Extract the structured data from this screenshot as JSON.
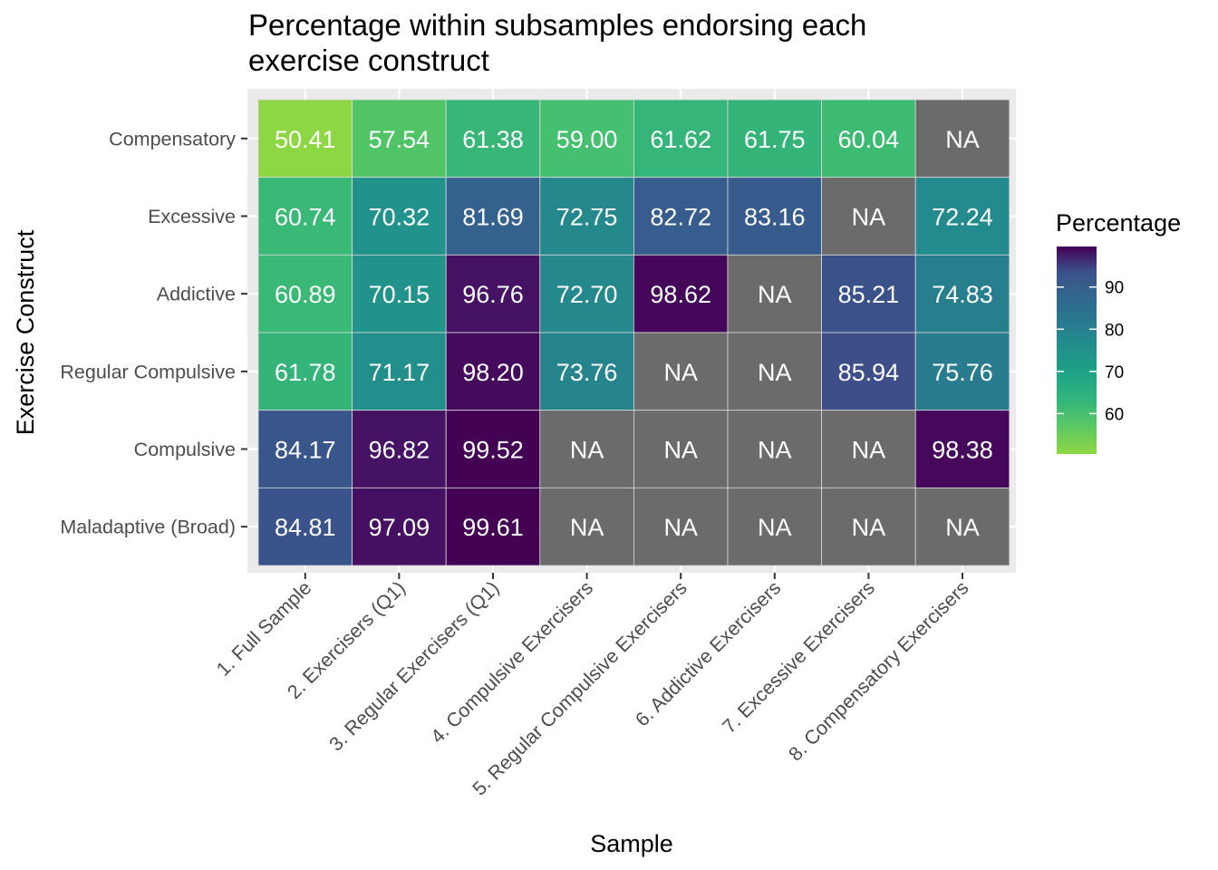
{
  "chart_data": {
    "type": "heatmap",
    "title": "Percentage within subsamples endorsing each exercise construct",
    "title_lines": [
      "Percentage within subsamples endorsing each",
      "exercise construct"
    ],
    "xlabel": "Sample",
    "ylabel": "Exercise Construct",
    "x_categories": [
      "1. Full Sample",
      "2. Exercisers (Q1)",
      "3. Regular Exercisers (Q1)",
      "4. Compulsive Exercisers",
      "5. Regular Compulsive Exercisers",
      "6. Addictive Exercisers",
      "7. Excessive Exercisers",
      "8. Compensatory Exercisers"
    ],
    "y_categories": [
      "Compensatory",
      "Excessive",
      "Addictive",
      "Regular Compulsive",
      "Compulsive",
      "Maladaptive (Broad)"
    ],
    "values": [
      [
        50.41,
        57.54,
        61.38,
        59.0,
        61.62,
        61.75,
        60.04,
        null
      ],
      [
        60.74,
        70.32,
        81.69,
        72.75,
        82.72,
        83.16,
        null,
        72.24
      ],
      [
        60.89,
        70.15,
        96.76,
        72.7,
        98.62,
        null,
        85.21,
        74.83
      ],
      [
        61.78,
        71.17,
        98.2,
        73.76,
        null,
        null,
        85.94,
        75.76
      ],
      [
        84.17,
        96.82,
        99.52,
        null,
        null,
        null,
        null,
        98.38
      ],
      [
        84.81,
        97.09,
        99.61,
        null,
        null,
        null,
        null,
        null
      ]
    ],
    "cell_labels": [
      [
        "50.41",
        "57.54",
        "61.38",
        "59.00",
        "61.62",
        "61.75",
        "60.04",
        "NA"
      ],
      [
        "60.74",
        "70.32",
        "81.69",
        "72.75",
        "82.72",
        "83.16",
        "NA",
        "72.24"
      ],
      [
        "60.89",
        "70.15",
        "96.76",
        "72.70",
        "98.62",
        "NA",
        "85.21",
        "74.83"
      ],
      [
        "61.78",
        "71.17",
        "98.20",
        "73.76",
        "NA",
        "NA",
        "85.94",
        "75.76"
      ],
      [
        "84.17",
        "96.82",
        "99.52",
        "NA",
        "NA",
        "NA",
        "NA",
        "98.38"
      ],
      [
        "84.81",
        "97.09",
        "99.61",
        "NA",
        "NA",
        "NA",
        "NA",
        "NA"
      ]
    ],
    "na_color": "#6b6b6b",
    "colorscale": "viridis (reversed)",
    "color_range": [
      50.41,
      99.61
    ],
    "legend": {
      "title": "Percentage",
      "ticks": [
        60,
        70,
        80,
        90
      ],
      "tick_labels": [
        "60",
        "70",
        "80",
        "90"
      ],
      "placement": "right"
    },
    "grid": true,
    "panel_background": "#ebebeb"
  }
}
